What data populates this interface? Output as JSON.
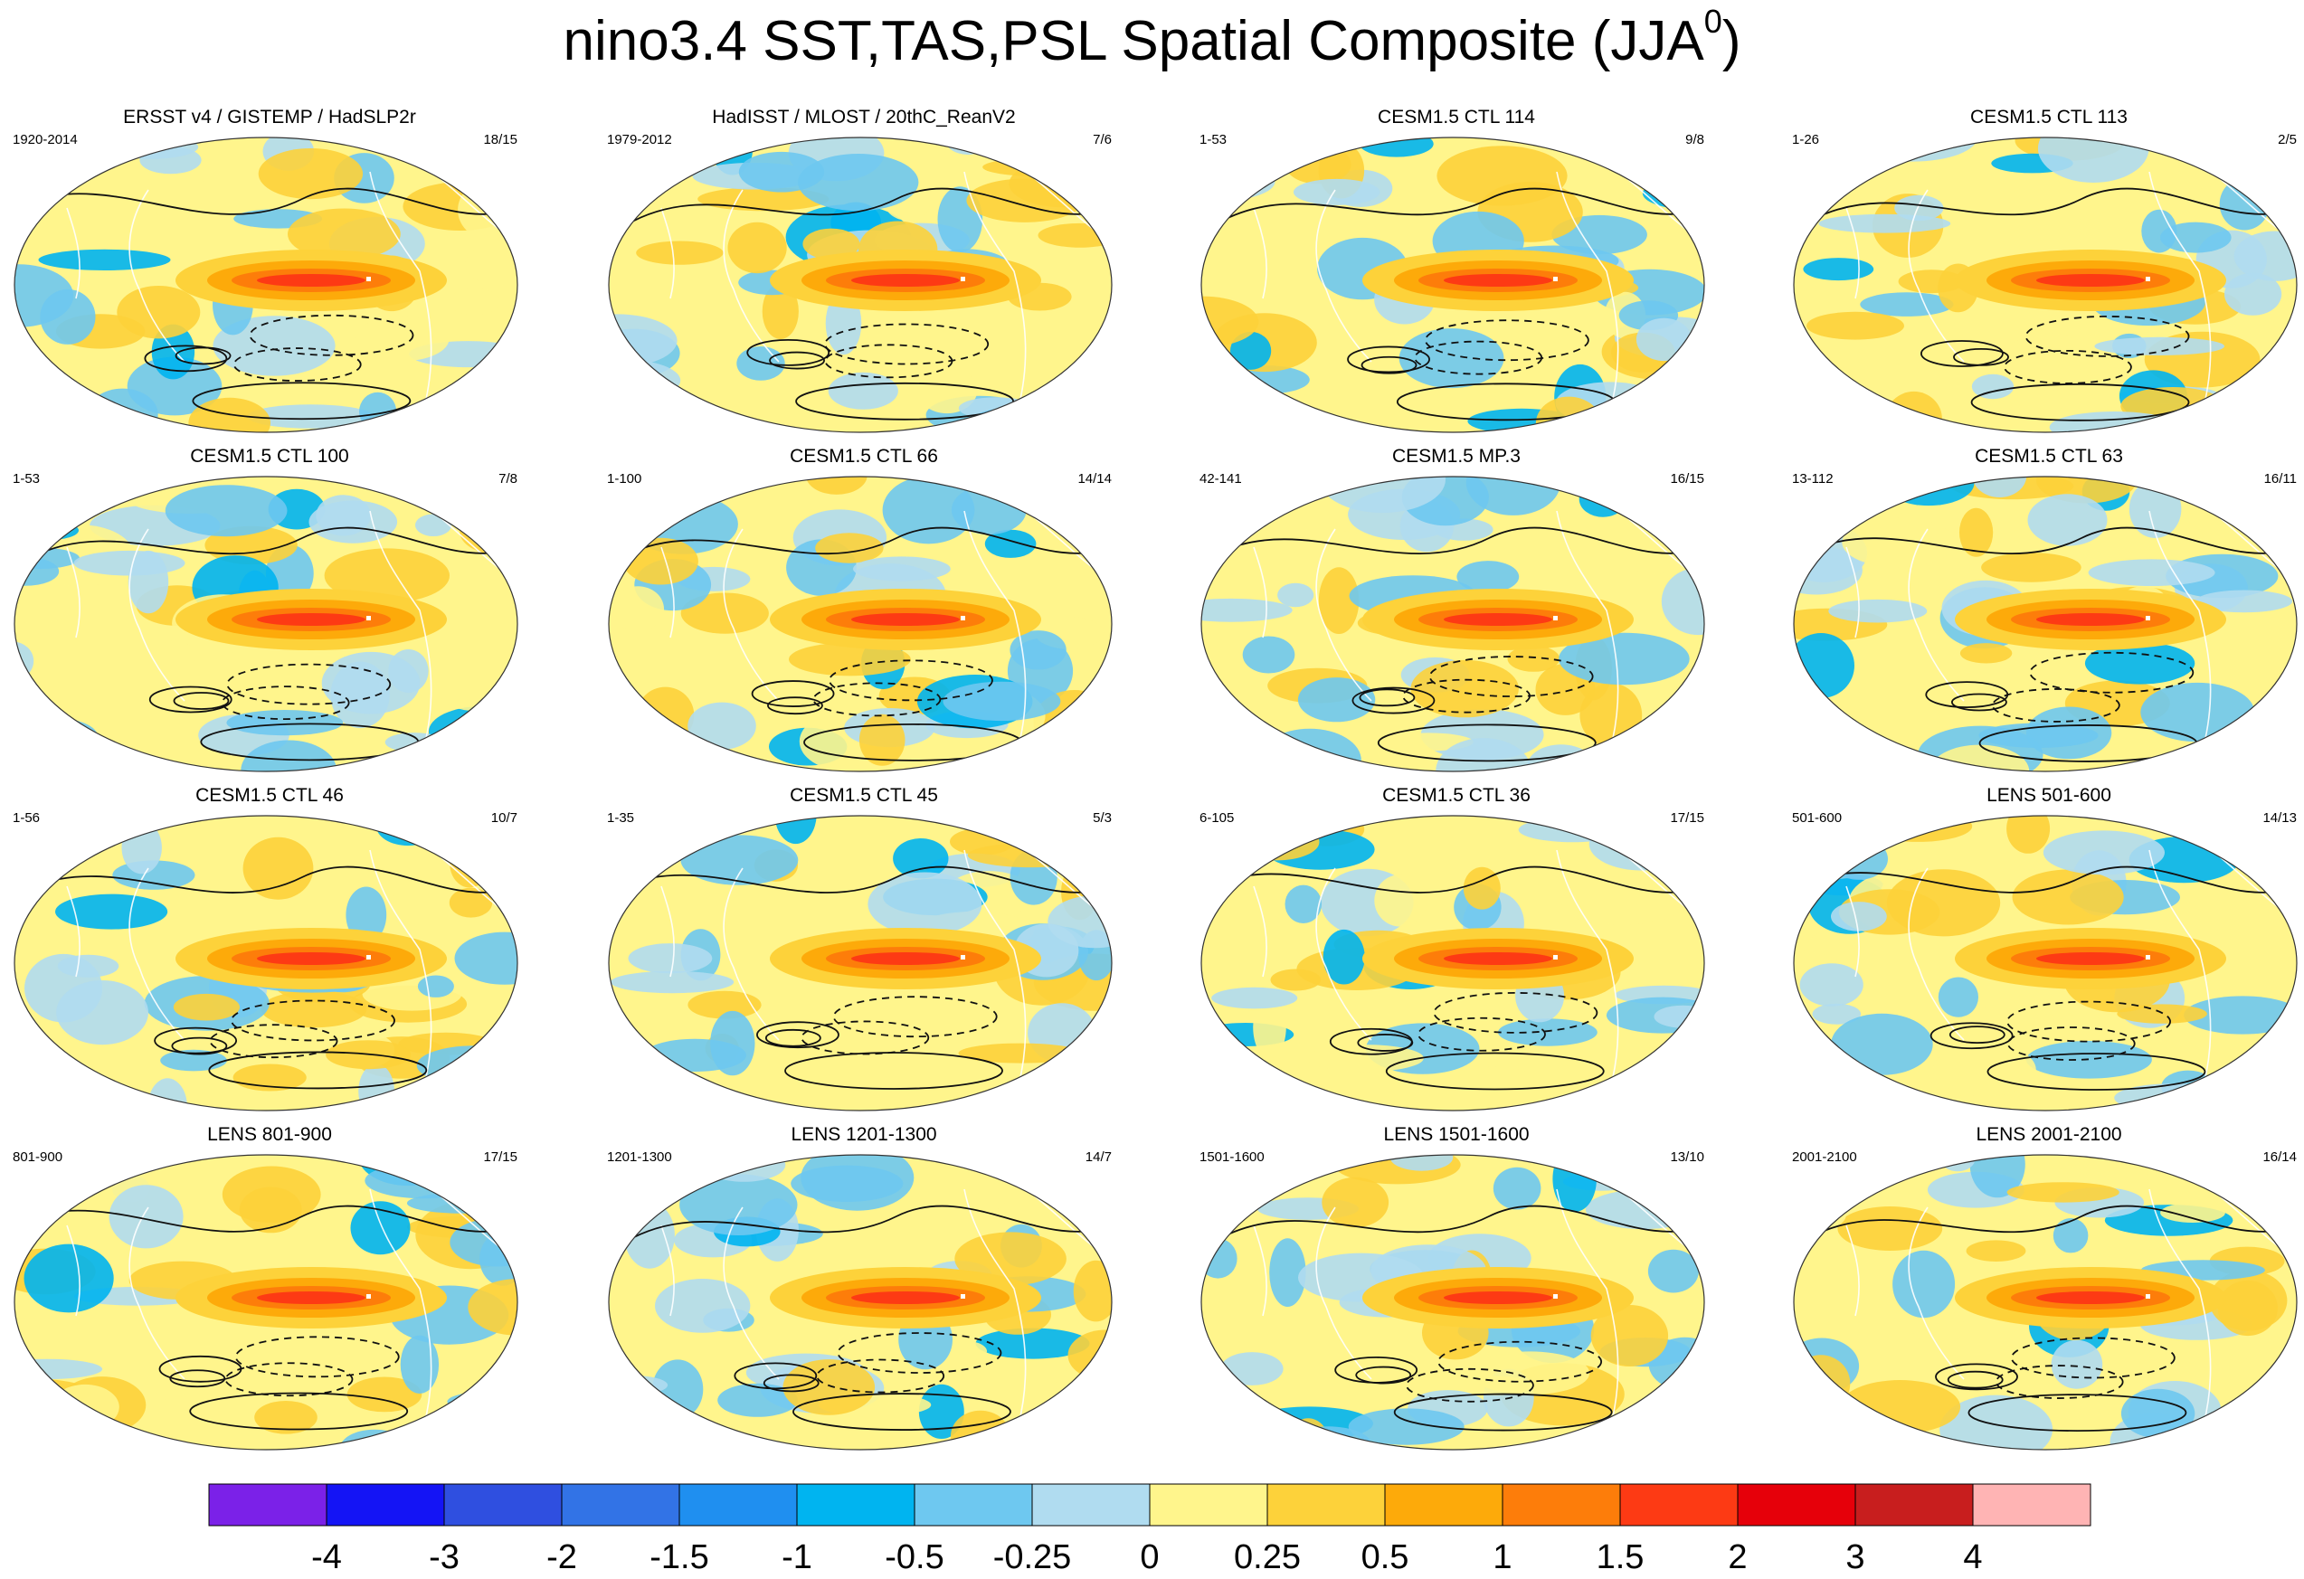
{
  "chart_data": {
    "type": "contour-map-panels",
    "title_main": "nino3.4 SST,TAS,PSL Spatial Composite (JJA",
    "title_sup": "0",
    "title_close": ")",
    "panels": [
      {
        "title": "ERSST v4 / GISTEMP / HadSLP2r",
        "years": "1920-2014",
        "count": "18/15"
      },
      {
        "title": "HadISST / MLOST / 20thC_ReanV2",
        "years": "1979-2012",
        "count": "7/6"
      },
      {
        "title": "CESM1.5 CTL 114",
        "years": "1-53",
        "count": "9/8"
      },
      {
        "title": "CESM1.5 CTL 113",
        "years": "1-26",
        "count": "2/5"
      },
      {
        "title": "CESM1.5 CTL 100",
        "years": "1-53",
        "count": "7/8"
      },
      {
        "title": "CESM1.5 CTL 66",
        "years": "1-100",
        "count": "14/14"
      },
      {
        "title": "CESM1.5 MP.3",
        "years": "42-141",
        "count": "16/15"
      },
      {
        "title": "CESM1.5 CTL 63",
        "years": "13-112",
        "count": "16/11"
      },
      {
        "title": "CESM1.5 CTL 46",
        "years": "1-56",
        "count": "10/7"
      },
      {
        "title": "CESM1.5 CTL 45",
        "years": "1-35",
        "count": "5/3"
      },
      {
        "title": "CESM1.5 CTL 36",
        "years": "6-105",
        "count": "17/15"
      },
      {
        "title": "LENS 501-600",
        "years": "501-600",
        "count": "14/13"
      },
      {
        "title": "LENS 801-900",
        "years": "801-900",
        "count": "17/15"
      },
      {
        "title": "LENS 1201-1300",
        "years": "1201-1300",
        "count": "14/7"
      },
      {
        "title": "LENS 1501-1600",
        "years": "1501-1600",
        "count": "13/10"
      },
      {
        "title": "LENS 2001-2100",
        "years": "2001-2100",
        "count": "16/14"
      }
    ],
    "colorbar": {
      "levels": [
        "-4",
        "-3",
        "-2",
        "-1.5",
        "-1",
        "-0.5",
        "-0.25",
        "0",
        "0.25",
        "0.5",
        "1",
        "1.5",
        "2",
        "3",
        "4"
      ],
      "colors": [
        "#7b21e8",
        "#1414f5",
        "#2f4fe0",
        "#3273e6",
        "#1f8ff0",
        "#00b4f0",
        "#6ec8f0",
        "#b0dcf0",
        "#fff58c",
        "#fdd23a",
        "#fdaa0a",
        "#fd7d0a",
        "#fd3a14",
        "#e6000a",
        "#c81e1e",
        "#ffb4b4"
      ]
    }
  }
}
